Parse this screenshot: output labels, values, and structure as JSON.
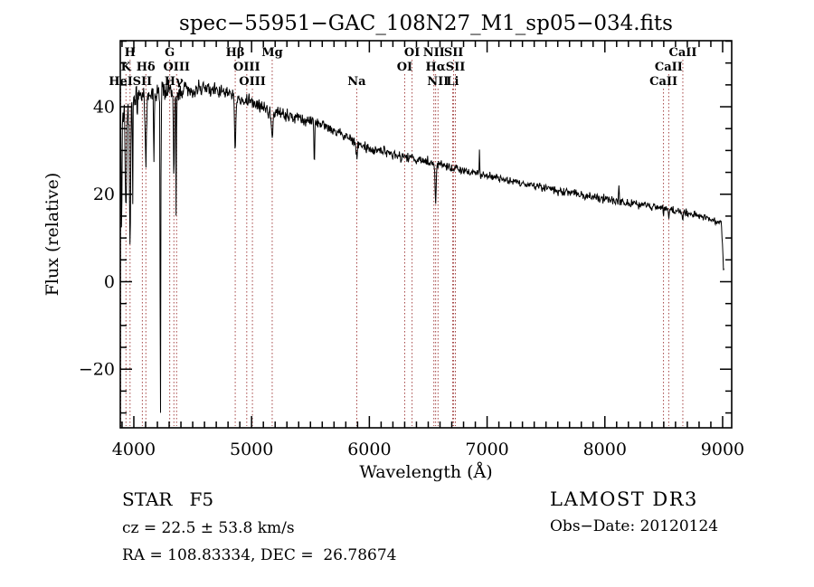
{
  "title": "spec−55951−GAC_108N27_M1_sp05−034.fits",
  "axes": {
    "xlabel": "Wavelength (Å)",
    "ylabel": "Flux (relative)"
  },
  "annotations": {
    "class_line": "STAR   F5",
    "cz_line": "cz = 22.5 ± 53.8 km/s",
    "radec_line": "RA = 108.83334, DEC =  26.78674",
    "survey": "LAMOST DR3",
    "obs_date_line": "Obs−Date: 20120124"
  },
  "colors": {
    "spectrum": "#000000",
    "line_marker": "#9b3030",
    "frame": "#000000",
    "background": "#ffffff"
  },
  "spectral_lines": [
    {
      "label": "H",
      "wavelength": 3968,
      "row": 1
    },
    {
      "label": "K",
      "wavelength": 3933,
      "row": 2
    },
    {
      "label": "HeI",
      "wavelength": 3889,
      "row": 3
    },
    {
      "label": "SII",
      "wavelength": 4072,
      "row": 3
    },
    {
      "label": "Hδ",
      "wavelength": 4102,
      "row": 2
    },
    {
      "label": "G",
      "wavelength": 4305,
      "row": 1
    },
    {
      "label": "Hγ",
      "wavelength": 4340,
      "row": 3
    },
    {
      "label": "OIII",
      "wavelength": 4363,
      "row": 2
    },
    {
      "label": "Hβ",
      "wavelength": 4861,
      "row": 1
    },
    {
      "label": "OIII",
      "wavelength": 4959,
      "row": 2
    },
    {
      "label": "OIII",
      "wavelength": 5007,
      "row": 3
    },
    {
      "label": "Mg",
      "wavelength": 5175,
      "row": 1
    },
    {
      "label": "Na",
      "wavelength": 5893,
      "row": 3
    },
    {
      "label": "OI",
      "wavelength": 6300,
      "row": 2
    },
    {
      "label": "OI",
      "wavelength": 6363,
      "row": 1
    },
    {
      "label": "NII",
      "wavelength": 6548,
      "row": 1
    },
    {
      "label": "Hα",
      "wavelength": 6563,
      "row": 2
    },
    {
      "label": "NII",
      "wavelength": 6583,
      "row": 3
    },
    {
      "label": "Li",
      "wavelength": 6707,
      "row": 3
    },
    {
      "label": "SII",
      "wavelength": 6716,
      "row": 1
    },
    {
      "label": "SII",
      "wavelength": 6731,
      "row": 2
    },
    {
      "label": "CaII",
      "wavelength": 8498,
      "row": 3
    },
    {
      "label": "CaII",
      "wavelength": 8542,
      "row": 2
    },
    {
      "label": "CaII",
      "wavelength": 8662,
      "row": 1
    }
  ],
  "chart_data": {
    "type": "line",
    "title": "spec−55951−GAC_108N27_M1_sp05−034.fits",
    "xlabel": "Wavelength (Å)",
    "ylabel": "Flux (relative)",
    "xlim": [
      3885,
      9077
    ],
    "ylim": [
      -33.4,
      55.1
    ],
    "x_major_ticks": [
      4000,
      5000,
      6000,
      7000,
      8000,
      9000
    ],
    "y_major_ticks": [
      -20,
      0,
      20,
      40
    ],
    "x_minor_step": 100,
    "y_minor_step": 5,
    "data_range": [
      3887,
      9012
    ],
    "sample_step": 4,
    "series_summary": "Noisy F5 stellar spectrum: flux rises to ~44 near 4500 Å then declines steadily to ~13 at 9000 Å with a sharp cutoff at the red end; deep absorption features at CaII H&K, Hδ, CaI 4226 (to plot bottom), Hγ, Hβ, Mg b, Na D, Hα and the CaII infrared triplet",
    "continuum_points": [
      [
        3885,
        36
      ],
      [
        3950,
        40.5
      ],
      [
        4050,
        42.5
      ],
      [
        4250,
        43.5
      ],
      [
        4550,
        44
      ],
      [
        4750,
        43.5
      ],
      [
        4950,
        41.5
      ],
      [
        5175,
        39
      ],
      [
        5400,
        37.5
      ],
      [
        5650,
        35.5
      ],
      [
        5900,
        31.5
      ],
      [
        6150,
        29.5
      ],
      [
        6400,
        28
      ],
      [
        6563,
        27
      ],
      [
        6800,
        25.5
      ],
      [
        7000,
        24.2
      ],
      [
        7300,
        22.5
      ],
      [
        7600,
        20.8
      ],
      [
        8000,
        18.8
      ],
      [
        8400,
        17.2
      ],
      [
        8600,
        16.2
      ],
      [
        8800,
        15
      ],
      [
        8990,
        13.5
      ],
      [
        9000,
        8
      ],
      [
        9008,
        2.2
      ],
      [
        9012,
        2
      ]
    ],
    "noise_amplitude": [
      [
        3885,
        8
      ],
      [
        3930,
        4
      ],
      [
        4000,
        3.4
      ],
      [
        4260,
        3.0
      ],
      [
        4450,
        2.0
      ],
      [
        5000,
        1.6
      ],
      [
        5600,
        1.4
      ],
      [
        6200,
        1.2
      ],
      [
        7000,
        1.0
      ],
      [
        9012,
        0.9
      ]
    ],
    "features": [
      {
        "center": 3895,
        "delta": -28,
        "fwhm": 8
      },
      {
        "center": 3933,
        "delta": -22,
        "fwhm": 14
      },
      {
        "center": 3968,
        "delta": -30,
        "fwhm": 12
      },
      {
        "center": 3990,
        "delta": -24,
        "fwhm": 6
      },
      {
        "center": 4102,
        "delta": -16,
        "fwhm": 12
      },
      {
        "center": 4170,
        "delta": -15,
        "fwhm": 6
      },
      {
        "center": 4226,
        "delta": -77,
        "fwhm": 7
      },
      {
        "center": 4340,
        "delta": -18,
        "fwhm": 10
      },
      {
        "center": 4360,
        "delta": -30,
        "fwhm": 5
      },
      {
        "center": 4861,
        "delta": -12,
        "fwhm": 12
      },
      {
        "center": 5175,
        "delta": -7,
        "fwhm": 14
      },
      {
        "center": 5533,
        "delta": -11,
        "fwhm": 7
      },
      {
        "center": 5893,
        "delta": -4,
        "fwhm": 10
      },
      {
        "center": 6563,
        "delta": -8.5,
        "fwhm": 12
      },
      {
        "center": 6935,
        "delta": 5,
        "fwhm": 5
      },
      {
        "center": 8120,
        "delta": 4,
        "fwhm": 6
      },
      {
        "center": 8498,
        "delta": -2,
        "fwhm": 8
      },
      {
        "center": 8542,
        "delta": -2.5,
        "fwhm": 8
      },
      {
        "center": 8662,
        "delta": -2,
        "fwhm": 8
      }
    ]
  }
}
